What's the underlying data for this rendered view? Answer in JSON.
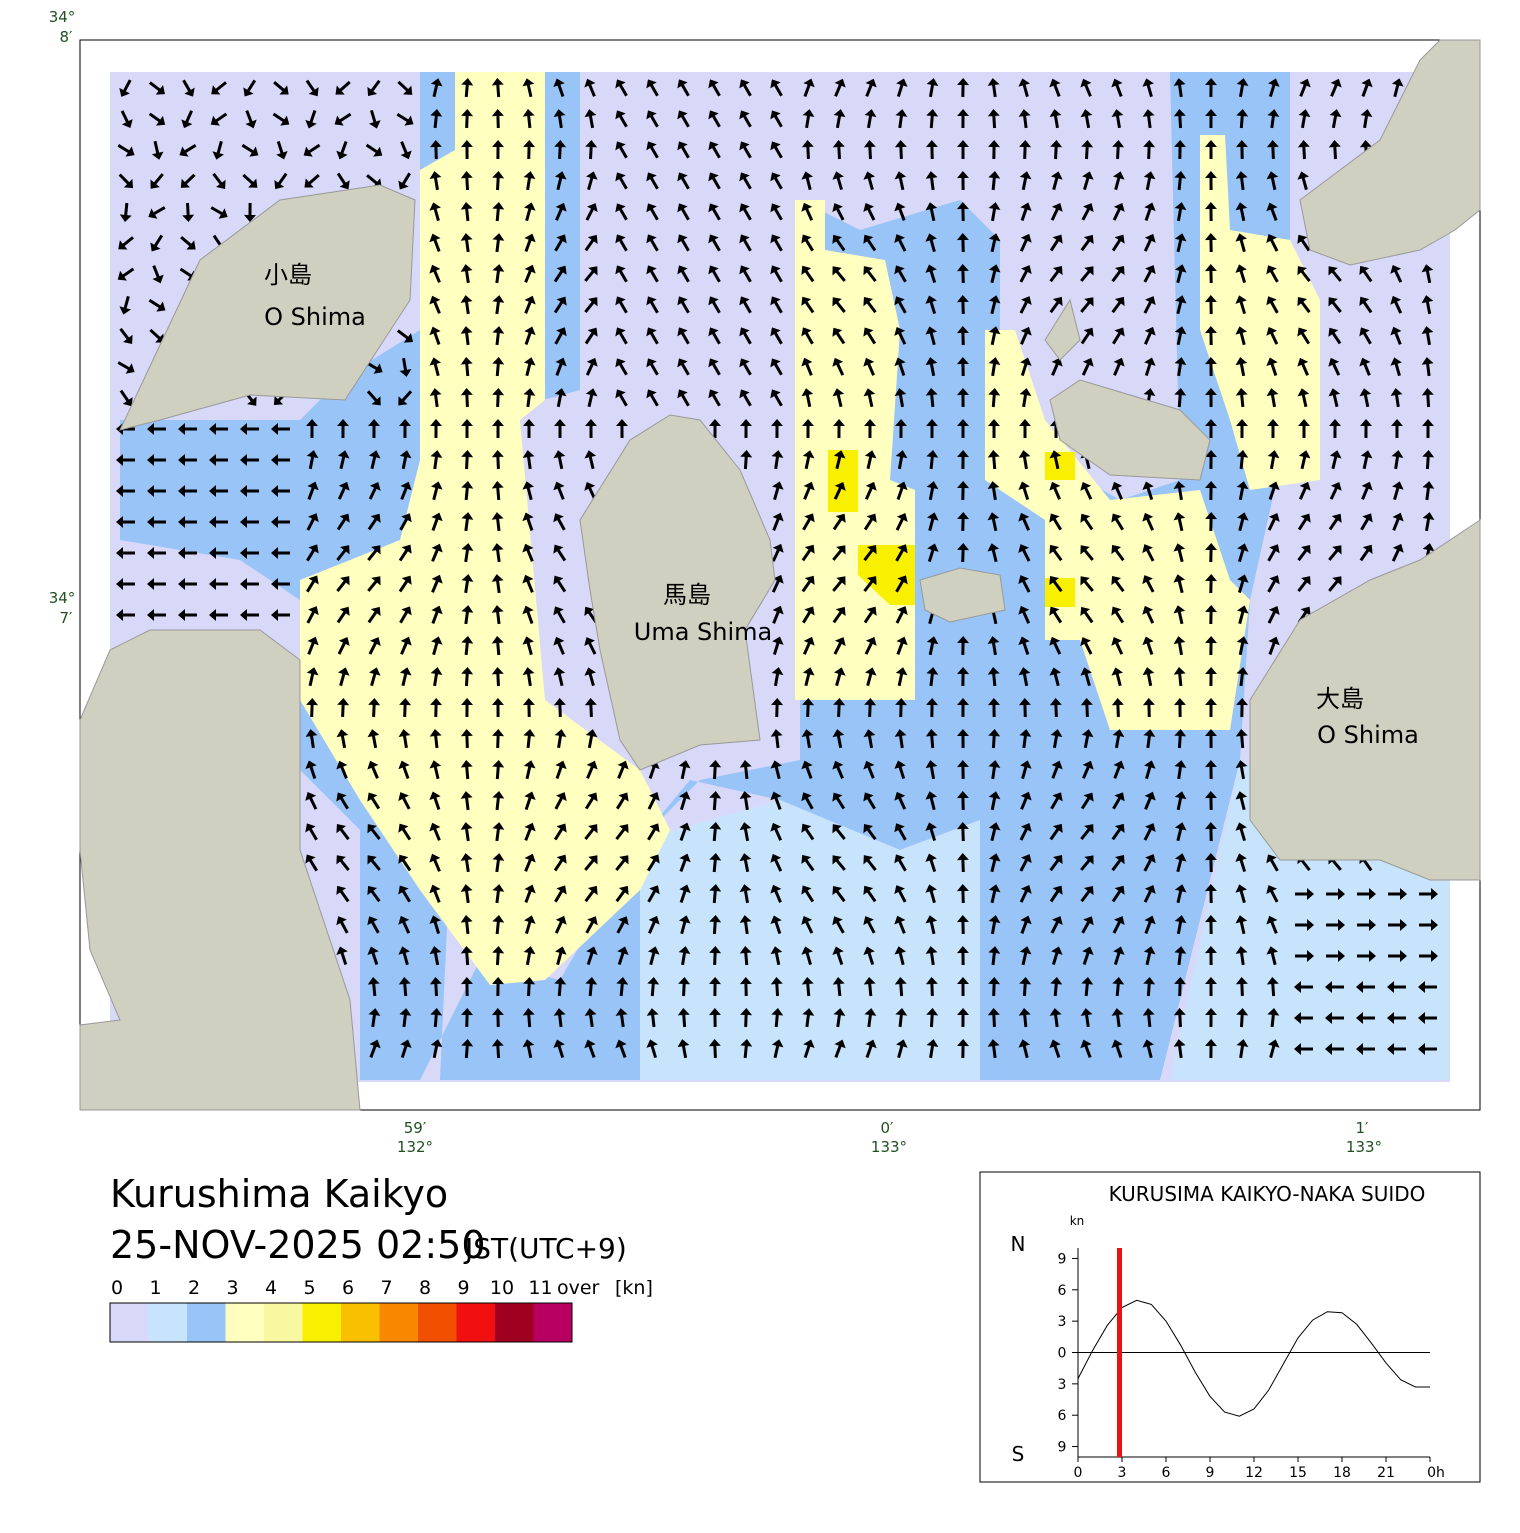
{
  "map": {
    "title": "Kurushima Kaikyo",
    "datetime": "25-NOV-2025 02:50",
    "timezone": "JST(UTC+9)",
    "lat_labels": [
      {
        "deg": "34°",
        "min": "8′"
      },
      {
        "deg": "34°",
        "min": "7′"
      }
    ],
    "lon_labels": [
      {
        "min": "59′",
        "deg": "132°"
      },
      {
        "min": "0′",
        "deg": "133°"
      },
      {
        "min": "1′",
        "deg": "133°"
      }
    ],
    "places": [
      {
        "ja": "小島",
        "en": "O Shima"
      },
      {
        "ja": "馬島",
        "en": "Uma Shima"
      },
      {
        "ja": "大島",
        "en": "O Shima"
      }
    ]
  },
  "legend": {
    "labels": [
      0,
      1,
      2,
      3,
      4,
      5,
      6,
      7,
      8,
      9,
      10,
      11
    ],
    "over": "over",
    "unit": "[kn]",
    "colors": [
      "#d8d8f8",
      "#c8e4fc",
      "#98c4f8",
      "#ffffc0",
      "#f8f8a0",
      "#f8f000",
      "#f8c000",
      "#f88800",
      "#f05000",
      "#f01010",
      "#a00020",
      "#b80060"
    ]
  },
  "chart_data": {
    "type": "line",
    "title": "KURUSIMA KAIKYO-NAKA SUIDO",
    "y_unit": "kn",
    "north_label": "N",
    "south_label": "S",
    "x": [
      0,
      1,
      2,
      3,
      4,
      5,
      6,
      7,
      8,
      9,
      10,
      11,
      12,
      13,
      14,
      15,
      16,
      17,
      18,
      19,
      20,
      21,
      22,
      23,
      24
    ],
    "series": [
      {
        "color": "#000000",
        "values": [
          -2.5,
          0.2,
          2.6,
          4.3,
          5.0,
          4.6,
          3.0,
          0.7,
          -1.9,
          -4.2,
          -5.7,
          -6.1,
          -5.4,
          -3.6,
          -1.1,
          1.4,
          3.1,
          3.9,
          3.8,
          2.7,
          0.9,
          -1.0,
          -2.6,
          -3.3,
          -3.3
        ]
      }
    ],
    "xlim": [
      0,
      24
    ],
    "xticks": [
      0,
      3,
      6,
      9,
      12,
      15,
      18,
      21,
      {
        "value": 24,
        "label": "0h"
      }
    ],
    "ylim": [
      -10,
      10
    ],
    "yticks": [
      9,
      6,
      3,
      0,
      {
        "value": -3,
        "label": "3"
      },
      {
        "value": -6,
        "label": "6"
      },
      {
        "value": -9,
        "label": "9"
      }
    ],
    "marker_x": 2.83,
    "marker_color": "#ee1111"
  }
}
